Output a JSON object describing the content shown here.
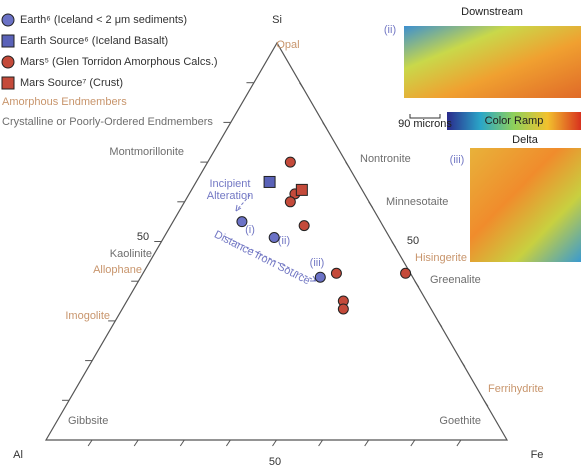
{
  "chart_data": {
    "type": "ternary",
    "axes": {
      "top": {
        "label": "Si",
        "tick_label": 50
      },
      "left": {
        "label": "Al",
        "tick_label": 50
      },
      "right": {
        "label": "Fe",
        "tick_label": 50
      }
    },
    "ticks": [
      10,
      20,
      30,
      40,
      50,
      60,
      70,
      80,
      90
    ],
    "series": [
      {
        "name": "Earth⁶ (Iceland < 2 μm sediments)",
        "marker": "circle",
        "color": "#6b72c6",
        "si": [
          55,
          51,
          41
        ],
        "al": [
          30,
          25,
          20
        ],
        "fe": [
          15,
          24,
          39
        ]
      },
      {
        "name": "Earth Source⁶ (Iceland Basalt)",
        "marker": "square",
        "color": "#5a62b8",
        "si": [
          65
        ],
        "al": [
          19
        ],
        "fe": [
          16
        ]
      },
      {
        "name": "Mars⁵ (Glen Torridon Amorphous Calcs.)",
        "marker": "circle",
        "color": "#c44a3a",
        "si": [
          70,
          62,
          60,
          54,
          42,
          35,
          33,
          42
        ],
        "al": [
          12,
          15,
          17,
          17,
          16,
          18,
          19,
          1
        ],
        "fe": [
          18,
          23,
          23,
          29,
          42,
          47,
          48,
          57
        ]
      },
      {
        "name": "Mars Source⁷ (Crust)",
        "marker": "square",
        "color": "#c44a3a",
        "si": [
          63
        ],
        "al": [
          13
        ],
        "fe": [
          24
        ]
      }
    ],
    "legend_notes": [
      {
        "text": "Amorphous Endmembers",
        "kind": "amorphous"
      },
      {
        "text": "Crystalline or Poorly-Ordered Endmembers",
        "kind": "crystalline"
      }
    ],
    "endmembers": [
      {
        "text": "Opal",
        "kind": "amorphous"
      },
      {
        "text": "Montmorillonite",
        "kind": "crystalline"
      },
      {
        "text": "Kaolinite",
        "kind": "crystalline"
      },
      {
        "text": "Allophane",
        "kind": "amorphous"
      },
      {
        "text": "Imogolite",
        "kind": "amorphous"
      },
      {
        "text": "Gibbsite",
        "kind": "crystalline"
      },
      {
        "text": "Goethite",
        "kind": "crystalline"
      },
      {
        "text": "Ferrihydrite",
        "kind": "amorphous"
      },
      {
        "text": "Greenalite",
        "kind": "crystalline"
      },
      {
        "text": "Hisingerite",
        "kind": "amorphous"
      },
      {
        "text": "Minnesotaite",
        "kind": "crystalline"
      },
      {
        "text": "Nontronite",
        "kind": "crystalline"
      }
    ],
    "annotations": {
      "incipient": "Incipient",
      "alteration": "Alteration",
      "distance": "Distance from Source",
      "point_labels": [
        "(i)",
        "(ii)",
        "(iii)"
      ]
    },
    "insets": [
      {
        "label": "(ii)",
        "title": "Downstream"
      },
      {
        "label": "(iii)",
        "title": "Delta"
      }
    ],
    "scale_bar": "90 microns",
    "color_ramp": "Color Ramp"
  }
}
